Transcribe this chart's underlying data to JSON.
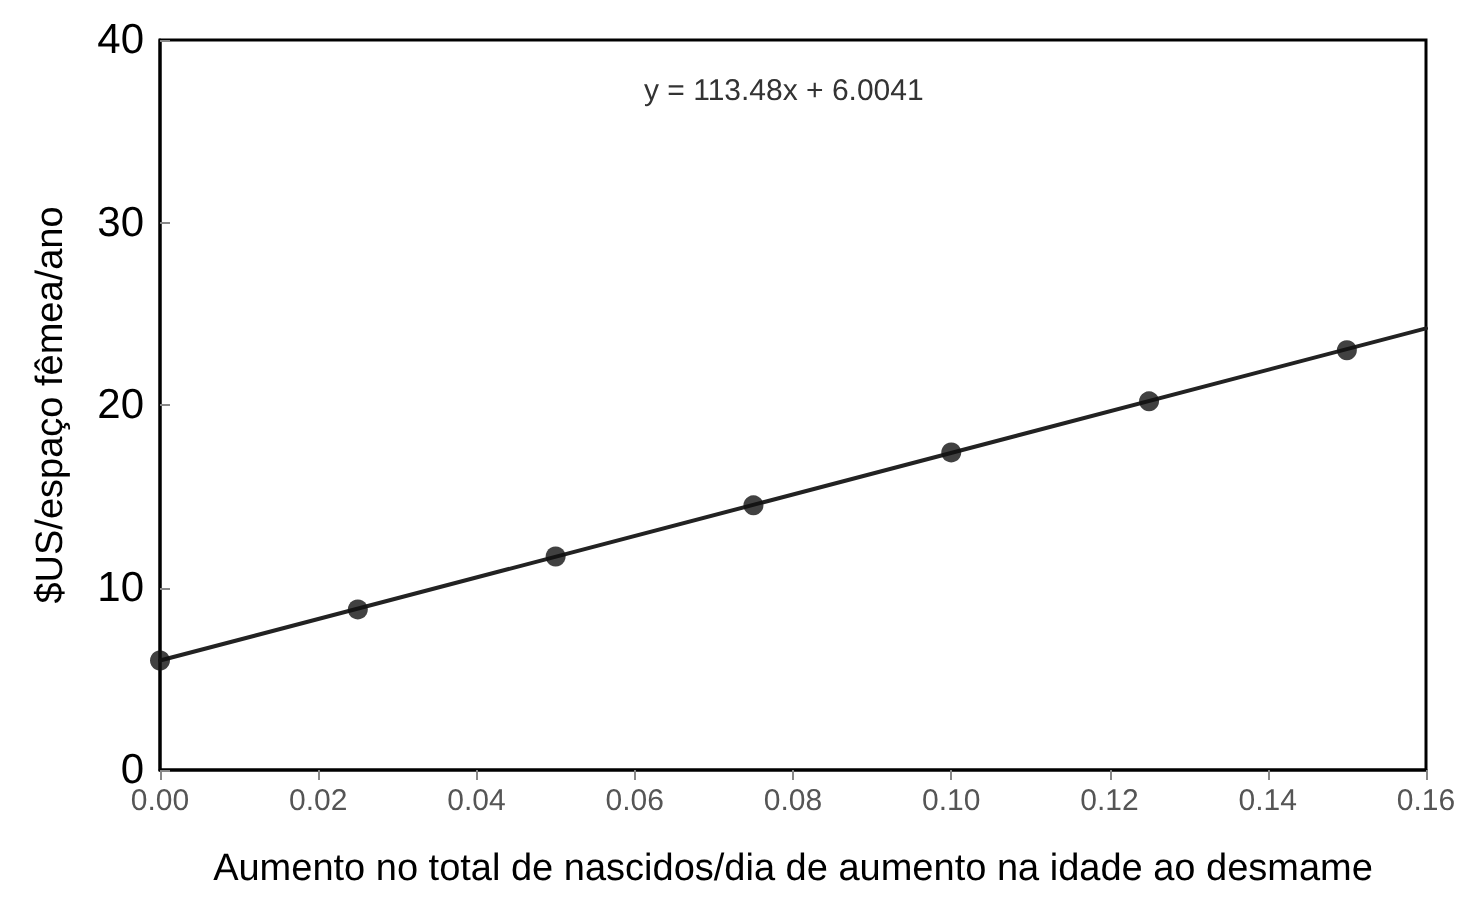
{
  "chart_data": {
    "type": "scatter",
    "xlabel": "Aumento no total de nascidos/dia de aumento na idade ao desmame",
    "ylabel": "$US/espaço fêmea/ano",
    "annotations": [
      "y = 113.48x + 6.0041"
    ],
    "xlim": [
      0,
      0.16
    ],
    "xticks": [
      {
        "value": 0,
        "label": "0.00"
      },
      0.02,
      0.04,
      0.06,
      0.08,
      {
        "value": 0.1,
        "label": "0.10"
      },
      0.12,
      0.14,
      0.16
    ],
    "ylim": [
      0,
      40
    ],
    "yticks": [
      0,
      10,
      20,
      30,
      40
    ],
    "grid": false,
    "marker": "circle",
    "series": [
      {
        "color": "#111111",
        "x": [
          0,
          0.025,
          0.05,
          0.075,
          0.1,
          0.125,
          0.15
        ],
        "values": [
          6.0,
          8.8,
          11.7,
          14.5,
          17.4,
          20.2,
          23.0
        ]
      },
      {
        "type": "line",
        "color": "#222222",
        "marker": "none",
        "line_style": "solid",
        "x": [
          0,
          0.16
        ],
        "values": [
          6.0,
          24.2
        ]
      }
    ]
  }
}
